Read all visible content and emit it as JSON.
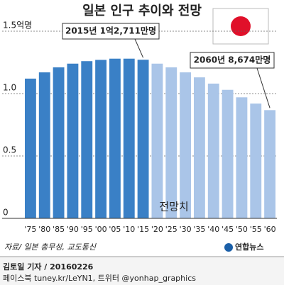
{
  "chart_data": {
    "type": "bar",
    "title": "일본 인구 추이와 전망",
    "categories": [
      "'75",
      "'80",
      "'85",
      "'90",
      "'95",
      "'00",
      "'05",
      "'10",
      "'15",
      "'20",
      "'25",
      "'30",
      "'35",
      "'40",
      "'45",
      "'50",
      "'55",
      "'60"
    ],
    "values": [
      1.12,
      1.17,
      1.21,
      1.24,
      1.26,
      1.27,
      1.28,
      1.28,
      1.2711,
      1.24,
      1.21,
      1.17,
      1.13,
      1.08,
      1.03,
      0.97,
      0.92,
      0.8674
    ],
    "colors": [
      "#3a80c6",
      "#3a80c6",
      "#3a80c6",
      "#3a80c6",
      "#3a80c6",
      "#3a80c6",
      "#3a80c6",
      "#3a80c6",
      "#3a80c6",
      "#aac5e8",
      "#aac5e8",
      "#aac5e8",
      "#aac5e8",
      "#aac5e8",
      "#aac5e8",
      "#aac5e8",
      "#aac5e8",
      "#aac5e8"
    ],
    "ylim": [
      0,
      1.5
    ],
    "yticks": [
      0,
      0.5,
      {
        "value": 1,
        "label": "1.0"
      },
      {
        "value": 1.5,
        "label": "1.5억명"
      }
    ],
    "grid": true,
    "annotations": [
      "2015년 1억2,711만명",
      "2060년 8,674만명",
      "전망치"
    ],
    "source": "자료/ 일본 총무성, 교도통신",
    "logo": "연합뉴스",
    "byline": "김토일 기자 / 20160226",
    "social": "페이스북 tuney.kr/LeYN1, 트위터 @yonhap_graphics"
  }
}
